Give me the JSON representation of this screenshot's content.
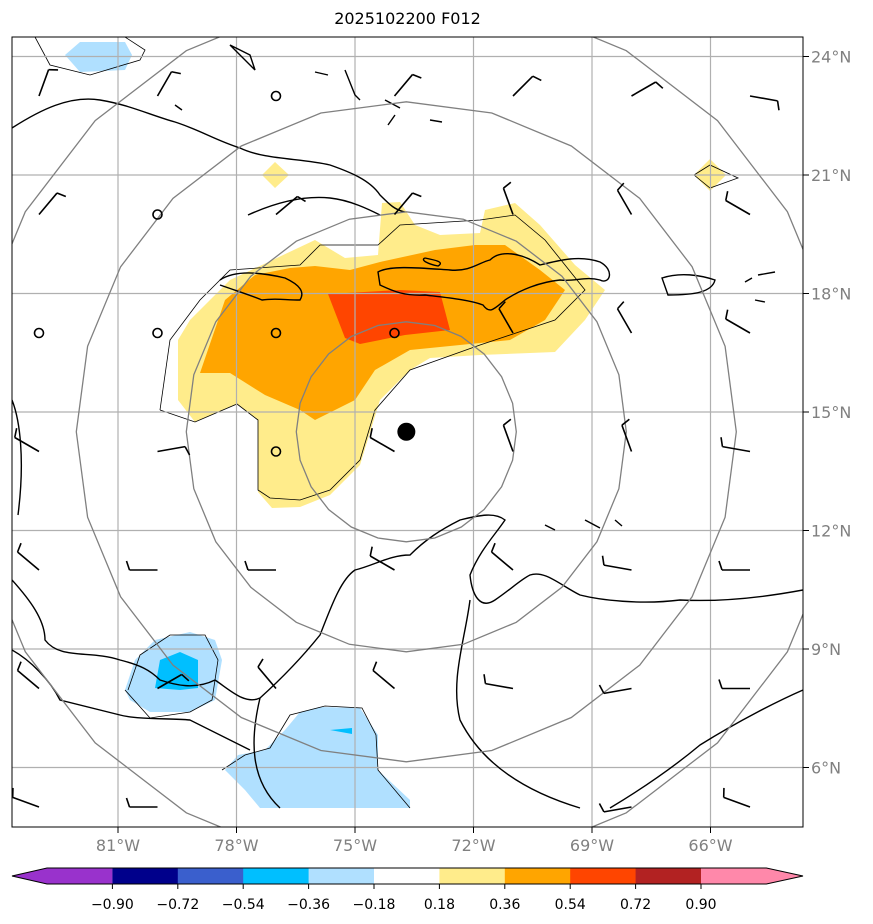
{
  "title": "2025102200 F012",
  "chart_data": {
    "type": "heatmap",
    "title": "2025102200 F012",
    "lon_range": [
      -83.7,
      -63.7
    ],
    "lat_range": [
      4.5,
      24.5
    ],
    "x_ticks": [
      "81°W",
      "78°W",
      "75°W",
      "72°W",
      "69°W",
      "66°W"
    ],
    "x_tick_values": [
      -81,
      -78,
      -75,
      -72,
      -69,
      -66
    ],
    "y_ticks": [
      "24°N",
      "21°N",
      "18°N",
      "15°N",
      "12°N",
      "9°N",
      "6°N"
    ],
    "y_tick_values": [
      24,
      21,
      18,
      15,
      12,
      9,
      6
    ],
    "grid": true,
    "center_marker": {
      "lon": -73.7,
      "lat": 14.5
    },
    "range_rings_km": [
      300,
      600,
      900,
      1200
    ],
    "colorbar": {
      "ticks": [
        "−0.90",
        "−0.72",
        "−0.54",
        "−0.36",
        "−0.18",
        "0.18",
        "0.36",
        "0.54",
        "0.72",
        "0.90"
      ],
      "colors": [
        "#9932cc",
        "#00008b",
        "#3a5fcd",
        "#00bfff",
        "#b0e0ff",
        "#ffffff",
        "#ffec8b",
        "#ffa500",
        "#ff4500",
        "#b22222",
        "#ff88aa"
      ],
      "extend": "both"
    },
    "filled_regions": [
      {
        "level": "0.18–0.36",
        "color": "#ffec8b",
        "area": "Jamaica–Hispaniola–Caribbean Sea"
      },
      {
        "level": "0.36–0.54",
        "color": "#ffa500",
        "area": "Jamaica–Hispaniola"
      },
      {
        "level": "0.54–0.72",
        "color": "#ff4500",
        "area": "south of Haiti"
      },
      {
        "level": "−0.36–−0.18",
        "color": "#b0e0ff",
        "area": "Central America / Colombia / N Bahamas"
      },
      {
        "level": "−0.54–−0.36",
        "color": "#00bfff",
        "area": "Central America"
      }
    ],
    "wind_barbs": [
      {
        "lon": -83,
        "lat": 23,
        "dir": 20,
        "spd": 10
      },
      {
        "lon": -80,
        "lat": 23,
        "dir": 30,
        "spd": 10
      },
      {
        "lon": -77,
        "lat": 23,
        "dir": 0,
        "spd": 0
      },
      {
        "lon": -74,
        "lat": 23,
        "dir": 40,
        "spd": 10
      },
      {
        "lon": -71,
        "lat": 23,
        "dir": 45,
        "spd": 10
      },
      {
        "lon": -68,
        "lat": 23,
        "dir": 60,
        "spd": 10
      },
      {
        "lon": -65,
        "lat": 23,
        "dir": 100,
        "spd": 10
      },
      {
        "lon": -83,
        "lat": 20,
        "dir": 40,
        "spd": 10
      },
      {
        "lon": -80,
        "lat": 20,
        "dir": 0,
        "spd": 0
      },
      {
        "lon": -77,
        "lat": 20,
        "dir": 50,
        "spd": 10
      },
      {
        "lon": -74,
        "lat": 20,
        "dir": 40,
        "spd": 10
      },
      {
        "lon": -71,
        "lat": 20,
        "dir": 340,
        "spd": 10
      },
      {
        "lon": -68,
        "lat": 20,
        "dir": 330,
        "spd": 10
      },
      {
        "lon": -65,
        "lat": 20,
        "dir": 300,
        "spd": 10
      },
      {
        "lon": -83,
        "lat": 17,
        "dir": 0,
        "spd": 0
      },
      {
        "lon": -80,
        "lat": 17,
        "dir": 0,
        "spd": 0
      },
      {
        "lon": -77,
        "lat": 17,
        "dir": 0,
        "spd": 0
      },
      {
        "lon": -74,
        "lat": 17,
        "dir": 0,
        "spd": 0
      },
      {
        "lon": -71,
        "lat": 17,
        "dir": 330,
        "spd": 10
      },
      {
        "lon": -68,
        "lat": 17,
        "dir": 330,
        "spd": 10
      },
      {
        "lon": -65,
        "lat": 17,
        "dir": 300,
        "spd": 10
      },
      {
        "lon": -83,
        "lat": 14,
        "dir": 300,
        "spd": 10
      },
      {
        "lon": -80,
        "lat": 14,
        "dir": 80,
        "spd": 10
      },
      {
        "lon": -77,
        "lat": 14,
        "dir": 0,
        "spd": 0
      },
      {
        "lon": -74,
        "lat": 14,
        "dir": 300,
        "spd": 10
      },
      {
        "lon": -71,
        "lat": 14,
        "dir": 340,
        "spd": 10
      },
      {
        "lon": -68,
        "lat": 14,
        "dir": 340,
        "spd": 10
      },
      {
        "lon": -65,
        "lat": 14,
        "dir": 280,
        "spd": 10
      },
      {
        "lon": -83,
        "lat": 11,
        "dir": 310,
        "spd": 10
      },
      {
        "lon": -80,
        "lat": 11,
        "dir": 270,
        "spd": 10
      },
      {
        "lon": -77,
        "lat": 11,
        "dir": 270,
        "spd": 10
      },
      {
        "lon": -74,
        "lat": 11,
        "dir": 300,
        "spd": 10
      },
      {
        "lon": -71,
        "lat": 11,
        "dir": 310,
        "spd": 10
      },
      {
        "lon": -68,
        "lat": 11,
        "dir": 280,
        "spd": 10
      },
      {
        "lon": -65,
        "lat": 11,
        "dir": 270,
        "spd": 10
      },
      {
        "lon": -83,
        "lat": 8,
        "dir": 310,
        "spd": 10
      },
      {
        "lon": -80,
        "lat": 8,
        "dir": 60,
        "spd": 10
      },
      {
        "lon": -77,
        "lat": 8,
        "dir": 320,
        "spd": 10
      },
      {
        "lon": -74,
        "lat": 8,
        "dir": 310,
        "spd": 10
      },
      {
        "lon": -71,
        "lat": 8,
        "dir": 280,
        "spd": 10
      },
      {
        "lon": -68,
        "lat": 8,
        "dir": 260,
        "spd": 10
      },
      {
        "lon": -65,
        "lat": 8,
        "dir": 270,
        "spd": 10
      },
      {
        "lon": -83,
        "lat": 5,
        "dir": 290,
        "spd": 10
      },
      {
        "lon": -80,
        "lat": 5,
        "dir": 270,
        "spd": 10
      },
      {
        "lon": -68,
        "lat": 5,
        "dir": 260,
        "spd": 10
      },
      {
        "lon": -65,
        "lat": 5,
        "dir": 290,
        "spd": 10
      }
    ]
  }
}
